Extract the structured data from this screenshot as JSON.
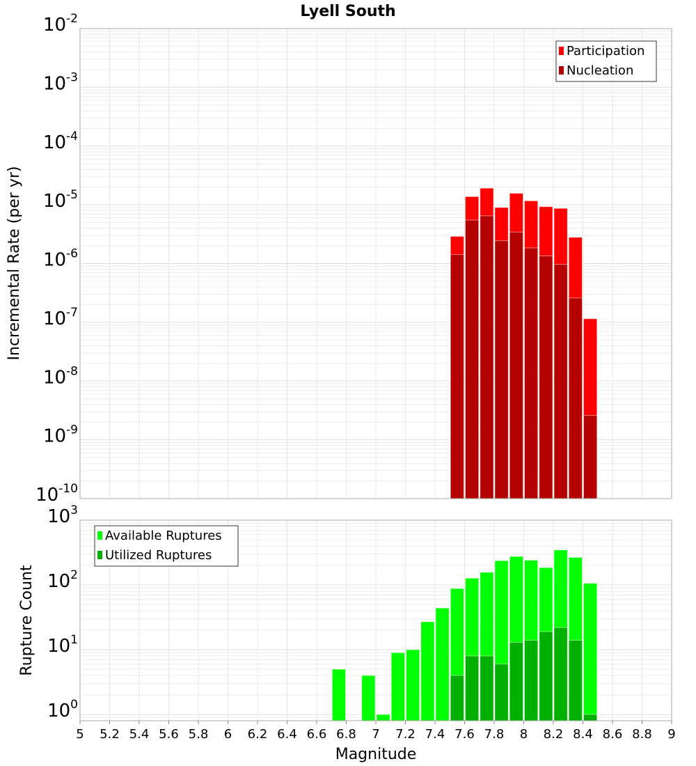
{
  "chart_data": [
    {
      "type": "bar",
      "title": "Lyell South",
      "xlabel": "Magnitude",
      "ylabel": "Incremental Rate (per yr)",
      "yscale": "log",
      "ylim": [
        1e-10,
        0.01
      ],
      "xlim": [
        5,
        9
      ],
      "grid": true,
      "legend_position": "top-right",
      "bin_width": 0.1,
      "x": [
        7.55,
        7.65,
        7.75,
        7.85,
        7.95,
        8.05,
        8.15,
        8.25,
        8.35,
        8.45
      ],
      "series": [
        {
          "name": "Participation",
          "color": "#ff0000",
          "values": [
            2.9e-06,
            1.38e-05,
            1.92e-05,
            9e-06,
            1.57e-05,
            1.17e-05,
            9.3e-06,
            8.7e-06,
            2.8e-06,
            1.15e-07
          ]
        },
        {
          "name": "Nucleation",
          "color": "#b30000",
          "values": [
            1.42e-06,
            5.5e-06,
            6.5e-06,
            2.45e-06,
            3.44e-06,
            1.85e-06,
            1.35e-06,
            9.7e-07,
            2.6e-07,
            2.6e-09
          ]
        }
      ],
      "ytick_exponents": [
        "-2",
        "-3",
        "-4",
        "-5",
        "-6",
        "-7",
        "-8",
        "-9",
        "-10"
      ]
    },
    {
      "type": "bar",
      "xlabel": "Magnitude",
      "ylabel": "Rupture Count",
      "yscale": "log",
      "ylim": [
        0.8,
        1000
      ],
      "xlim": [
        5,
        9
      ],
      "grid": true,
      "legend_position": "top-left",
      "bin_width": 0.1,
      "x": [
        6.75,
        6.95,
        7.05,
        7.15,
        7.25,
        7.35,
        7.45,
        7.55,
        7.65,
        7.75,
        7.85,
        7.95,
        8.05,
        8.15,
        8.25,
        8.35,
        8.45
      ],
      "series": [
        {
          "name": "Available Ruptures",
          "color": "#00ff00",
          "values": [
            5,
            4,
            1,
            9,
            10,
            27,
            44,
            88,
            127,
            157,
            237,
            275,
            241,
            185,
            347,
            266,
            106
          ]
        },
        {
          "name": "Utilized Ruptures",
          "color": "#00b000",
          "values": [
            0,
            0,
            0,
            0,
            0,
            0,
            0,
            4,
            8,
            8,
            6,
            13,
            14,
            19,
            22,
            14,
            1
          ]
        }
      ],
      "ytick_exponents": [
        "3",
        "2",
        "1",
        "0"
      ],
      "xtick_labels": [
        "5",
        "5.2",
        "5.4",
        "5.6",
        "5.8",
        "6",
        "6.2",
        "6.4",
        "6.6",
        "6.8",
        "7",
        "7.2",
        "7.4",
        "7.6",
        "7.8",
        "8",
        "8.2",
        "8.4",
        "8.6",
        "8.8",
        "9"
      ]
    }
  ]
}
